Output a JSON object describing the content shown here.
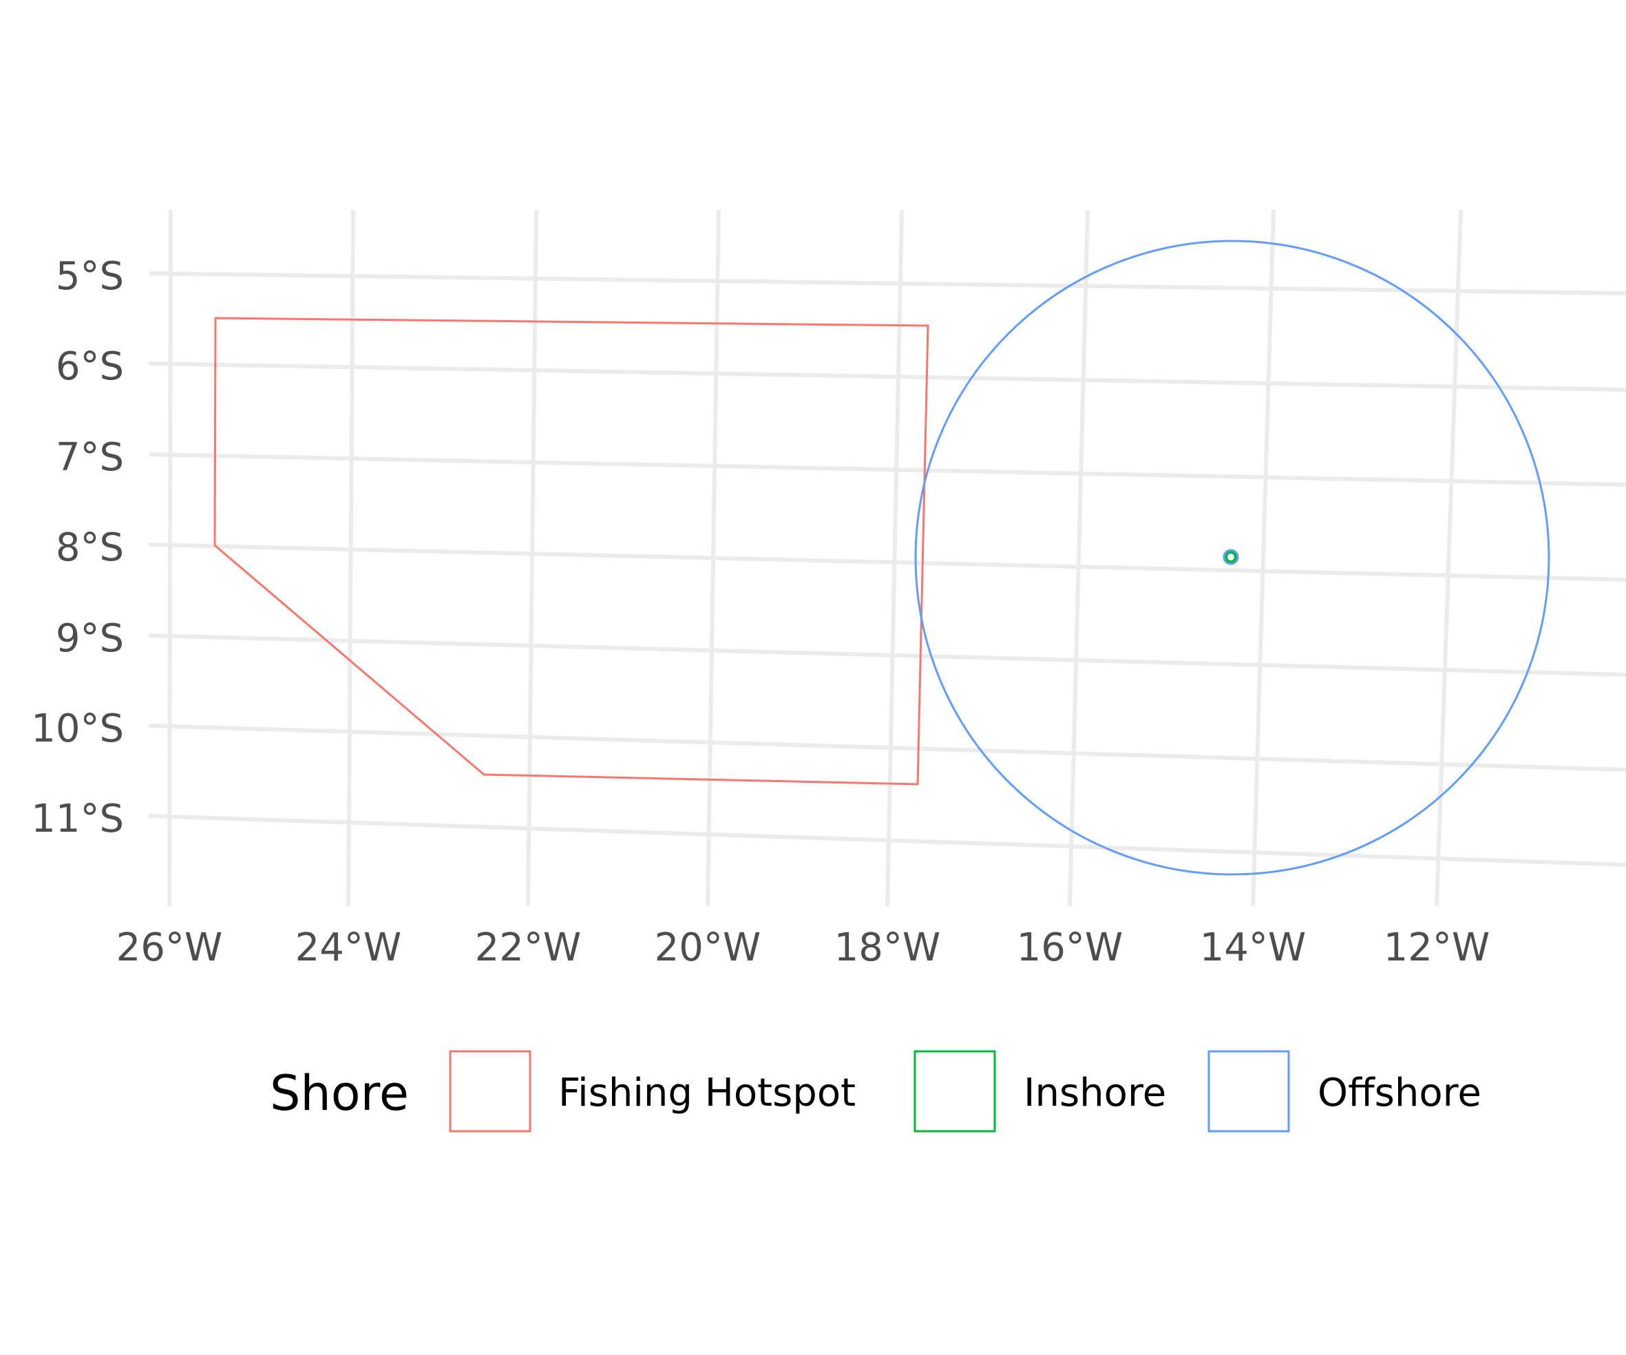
{
  "map": {
    "type": "map",
    "projection": "oblique",
    "grid": true,
    "lon_labels": [
      "26°W",
      "24°W",
      "22°W",
      "20°W",
      "18°W",
      "16°W",
      "14°W",
      "12°W"
    ],
    "lat_labels": [
      "5°S",
      "6°S",
      "7°S",
      "8°S",
      "9°S",
      "10°S",
      "11°S"
    ],
    "legend": {
      "title": "Shore",
      "position": "bottom",
      "entries": [
        {
          "label": "Fishing Hotspot",
          "color": "#F8766D"
        },
        {
          "label": "Inshore",
          "color": "#00BA38"
        },
        {
          "label": "Offshore",
          "color": "#619CFF"
        }
      ]
    },
    "features": [
      {
        "category": "Fishing Hotspot",
        "shape": "polygon",
        "color": "#F8766D",
        "vertices_lonlat": [
          [
            -25.5,
            -5.5
          ],
          [
            -17.6,
            -5.5
          ],
          [
            -17.6,
            -10.6
          ],
          [
            -22.5,
            -10.6
          ],
          [
            -25.5,
            -8.0
          ]
        ]
      },
      {
        "category": "Offshore",
        "shape": "circle",
        "color": "#619CFF",
        "center_lonlat": [
          -14.2,
          -8.1
        ],
        "radius_deg": 3.5
      },
      {
        "category": "Inshore",
        "shape": "small-ring",
        "color": "#00BA38",
        "center_lonlat": [
          -14.2,
          -8.1
        ]
      }
    ]
  }
}
